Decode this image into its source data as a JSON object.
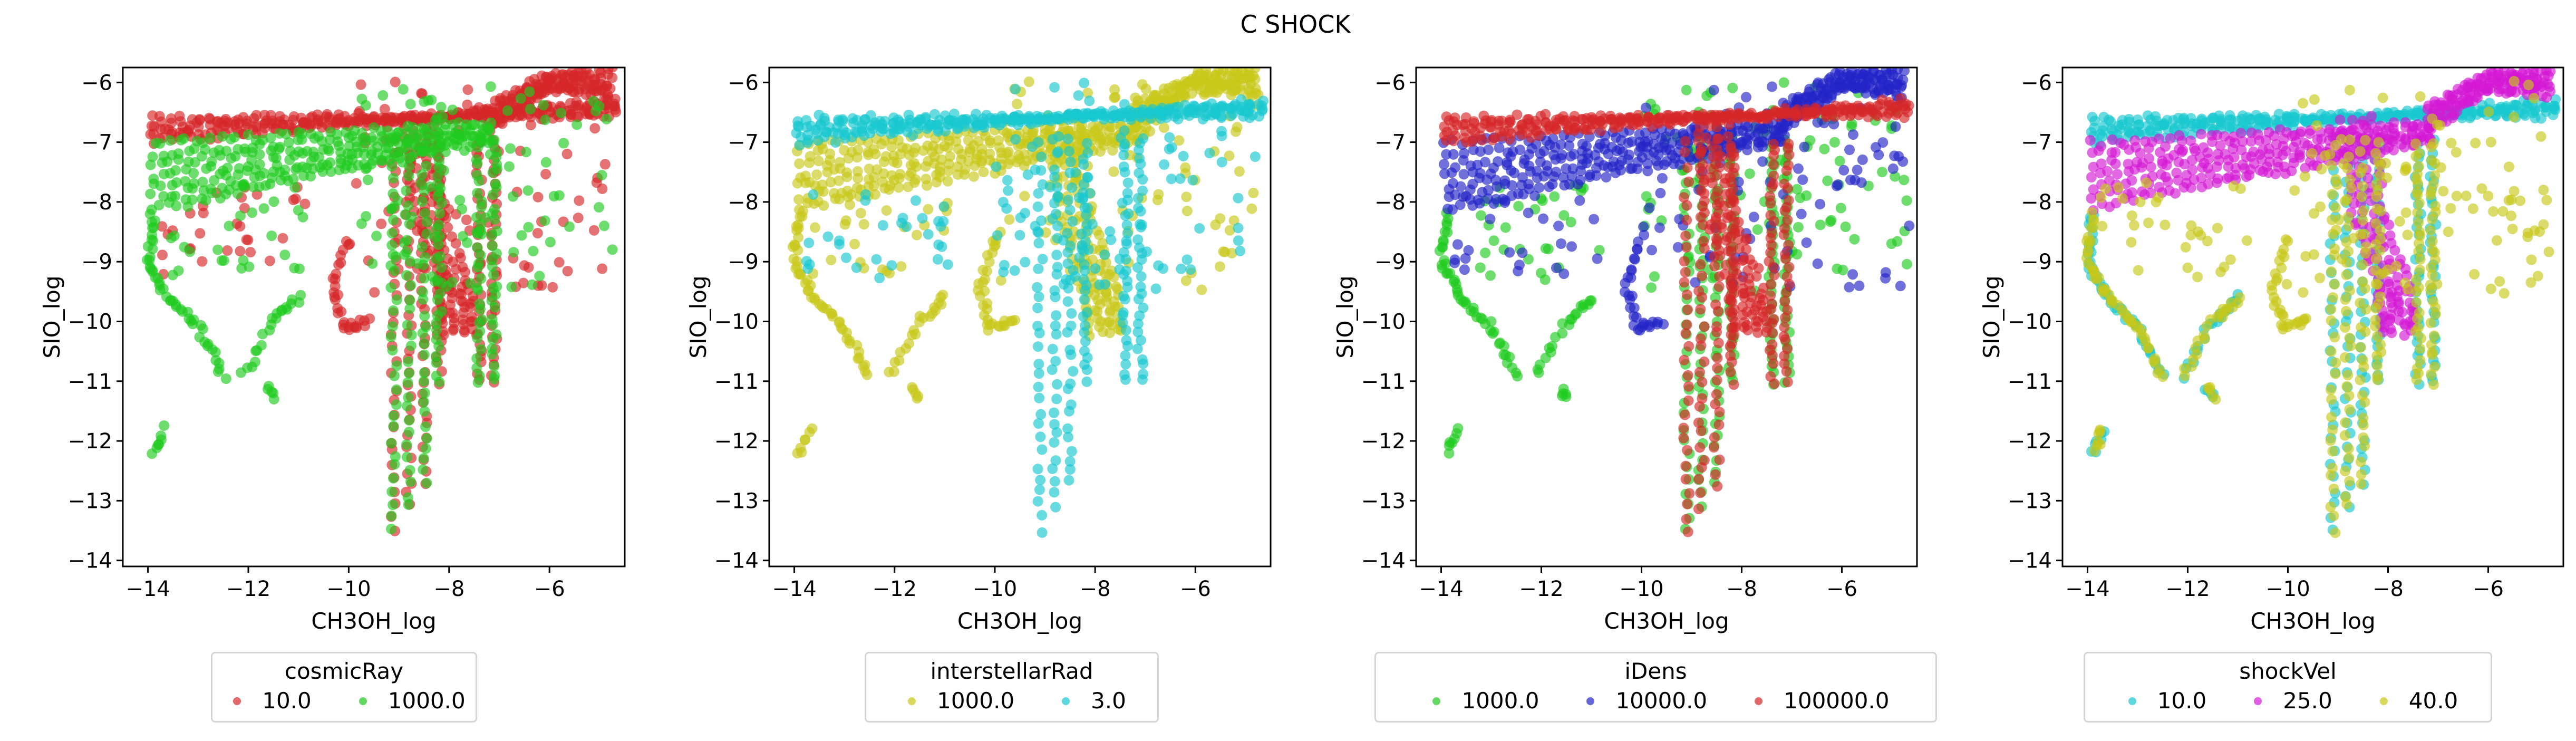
{
  "figure_title": "C SHOCK",
  "chart_data": [
    {
      "type": "scatter",
      "title": "",
      "xlabel": "CH3OH_log",
      "ylabel": "SIO_log",
      "xlim": [
        -14.5,
        -4.5
      ],
      "ylim": [
        -14.1,
        -5.75
      ],
      "xticks": [
        -14,
        -12,
        -10,
        -8,
        -6
      ],
      "yticks": [
        -14,
        -13,
        -12,
        -11,
        -10,
        -9,
        -8,
        -7,
        -6
      ],
      "hue": "cosmicRay",
      "legend_position": "below",
      "series": [
        {
          "name": "10.0",
          "color": "#d62728"
        },
        {
          "name": "1000.0",
          "color": "#1fcb1f"
        }
      ]
    },
    {
      "type": "scatter",
      "title": "",
      "xlabel": "CH3OH_log",
      "ylabel": "SIO_log",
      "xlim": [
        -14.5,
        -4.5
      ],
      "ylim": [
        -14.1,
        -5.75
      ],
      "xticks": [
        -14,
        -12,
        -10,
        -8,
        -6
      ],
      "yticks": [
        -14,
        -13,
        -12,
        -11,
        -10,
        -9,
        -8,
        -7,
        -6
      ],
      "hue": "interstellarRad",
      "legend_position": "below",
      "series": [
        {
          "name": "1000.0",
          "color": "#c8c818"
        },
        {
          "name": "3.0",
          "color": "#17c8d0"
        }
      ]
    },
    {
      "type": "scatter",
      "title": "",
      "xlabel": "CH3OH_log",
      "ylabel": "SIO_log",
      "xlim": [
        -14.5,
        -4.5
      ],
      "ylim": [
        -14.1,
        -5.75
      ],
      "xticks": [
        -14,
        -12,
        -10,
        -8,
        -6
      ],
      "yticks": [
        -14,
        -13,
        -12,
        -11,
        -10,
        -9,
        -8,
        -7,
        -6
      ],
      "hue": "iDens",
      "legend_position": "below",
      "series": [
        {
          "name": "1000.0",
          "color": "#1fcb1f"
        },
        {
          "name": "10000.0",
          "color": "#2424c8"
        },
        {
          "name": "100000.0",
          "color": "#d62728"
        }
      ]
    },
    {
      "type": "scatter",
      "title": "",
      "xlabel": "CH3OH_log",
      "ylabel": "SIO_log",
      "xlim": [
        -14.5,
        -4.5
      ],
      "ylim": [
        -14.1,
        -5.75
      ],
      "xticks": [
        -14,
        -12,
        -10,
        -8,
        -6
      ],
      "yticks": [
        -14,
        -13,
        -12,
        -11,
        -10,
        -9,
        -8,
        -7,
        -6
      ],
      "hue": "shockVel",
      "legend_position": "below",
      "series": [
        {
          "name": "10.0",
          "color": "#17c8d0"
        },
        {
          "name": "25.0",
          "color": "#d418d4"
        },
        {
          "name": "40.0",
          "color": "#c8c818"
        }
      ]
    }
  ]
}
